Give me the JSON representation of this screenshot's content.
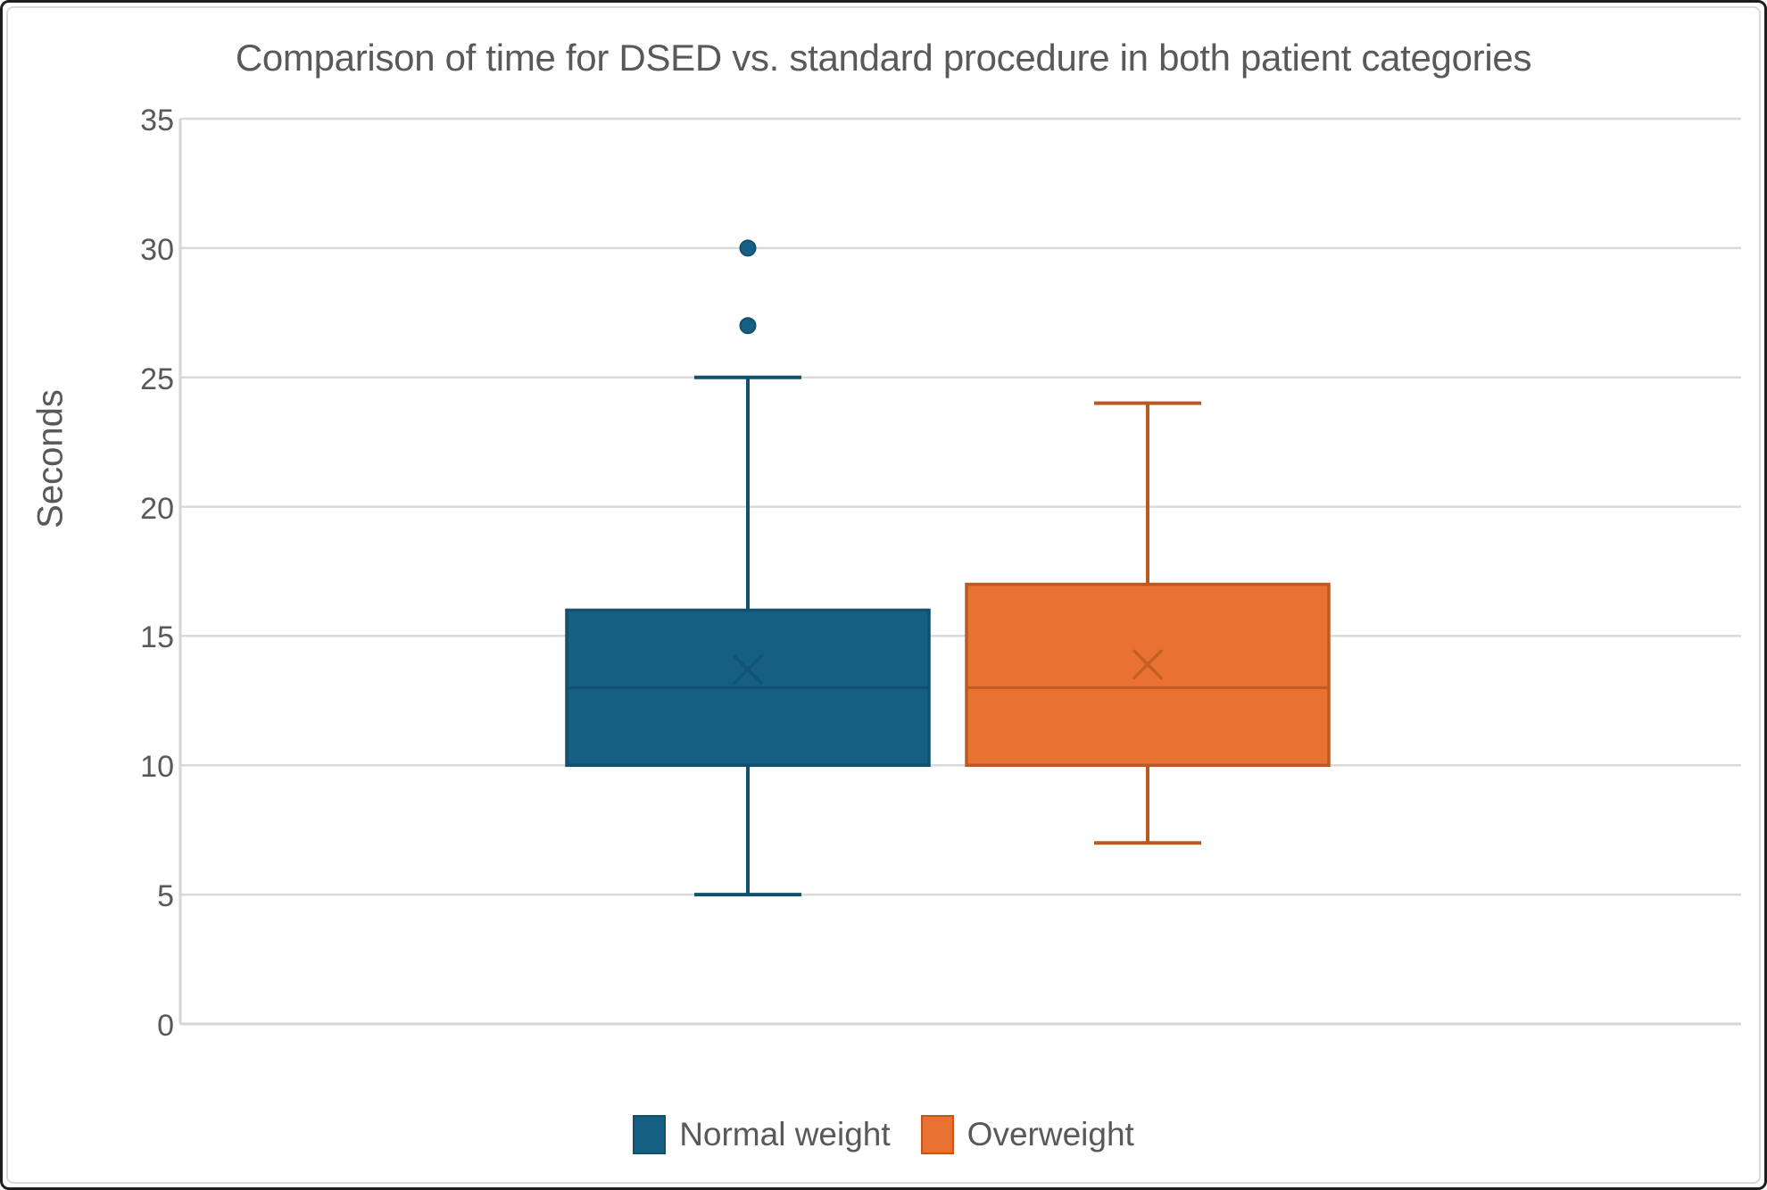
{
  "canvas": {
    "outer_border_color": "#1e1e1e",
    "inner_border_color": "#d9d9d9",
    "background": "#ffffff"
  },
  "chart_data": {
    "type": "boxplot",
    "title": "Comparison of time for DSED vs. standard procedure in both patient categories",
    "ylabel": "Seconds",
    "xlabel": "",
    "ylim": [
      0,
      35
    ],
    "yticks": [
      0,
      5,
      10,
      15,
      20,
      25,
      30,
      35
    ],
    "grid": true,
    "gridline_color": "#d9d9d9",
    "axis_line_color": "#d6d6d6",
    "text_color": "#595959",
    "legend_position": "bottom",
    "series": [
      {
        "name": "Normal weight",
        "whisker_low": 5,
        "q1": 10,
        "median": 13,
        "q3": 16,
        "whisker_high": 25,
        "mean": 13.7,
        "outliers": [
          27,
          30
        ],
        "fill": "#156082",
        "line": "#11506e"
      },
      {
        "name": "Overweight",
        "whisker_low": 7,
        "q1": 10,
        "median": 13,
        "q3": 17,
        "whisker_high": 24,
        "mean": 13.9,
        "outliers": [],
        "fill": "#e97132",
        "line": "#ba5a22"
      }
    ]
  }
}
